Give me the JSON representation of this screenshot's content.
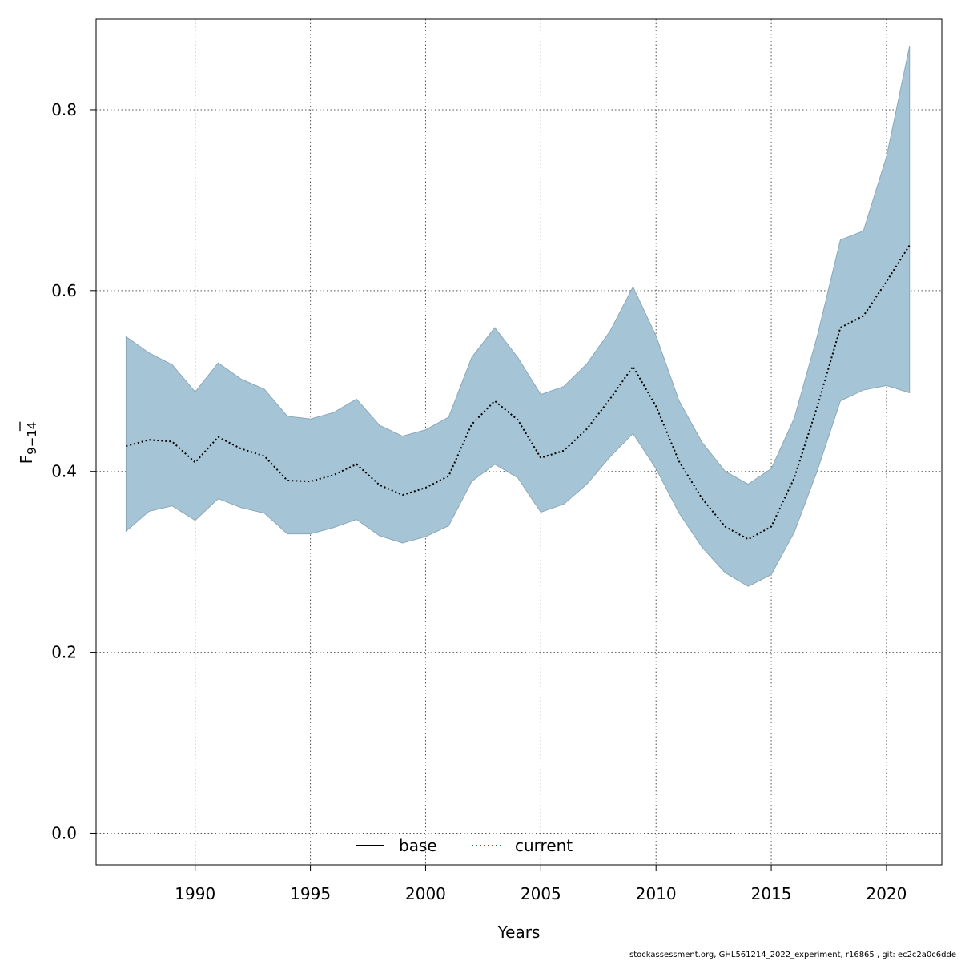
{
  "chart_data": {
    "type": "area",
    "xlabel": "Years",
    "ylabel": {
      "main": "F",
      "subscript": "9−14"
    },
    "xlim": [
      1985.7,
      2022.4
    ],
    "ylim": [
      -0.035,
      0.9
    ],
    "x_ticks": [
      1990,
      1995,
      2000,
      2005,
      2010,
      2015,
      2020
    ],
    "y_ticks": [
      0.0,
      0.2,
      0.4,
      0.6,
      0.8
    ],
    "x_tick_labels": [
      "1990",
      "1995",
      "2000",
      "2005",
      "2010",
      "2015",
      "2020"
    ],
    "y_tick_labels": [
      "0.0",
      "0.2",
      "0.4",
      "0.6",
      "0.8"
    ],
    "grid": true,
    "legend_position": "bottom-center",
    "colors": {
      "band_fill": "#a5c5d7",
      "band_edge": "#8aa8b8",
      "current_line": "#000000",
      "base_line": "#000000",
      "current_legend": "#2a6a9a",
      "grid": "#555555"
    },
    "x": [
      1987,
      1988,
      1989,
      1990,
      1991,
      1992,
      1993,
      1994,
      1995,
      1996,
      1997,
      1998,
      1999,
      2000,
      2001,
      2002,
      2003,
      2004,
      2005,
      2006,
      2007,
      2008,
      2009,
      2010,
      2011,
      2012,
      2013,
      2014,
      2015,
      2016,
      2017,
      2018,
      2019,
      2020,
      2021
    ],
    "series": [
      {
        "name": "current",
        "style": "dotted",
        "values": [
          0.428,
          0.435,
          0.433,
          0.41,
          0.438,
          0.425,
          0.417,
          0.39,
          0.389,
          0.396,
          0.408,
          0.385,
          0.374,
          0.382,
          0.395,
          0.452,
          0.478,
          0.457,
          0.415,
          0.423,
          0.447,
          0.48,
          0.516,
          0.472,
          0.411,
          0.37,
          0.339,
          0.325,
          0.339,
          0.393,
          0.472,
          0.559,
          0.572,
          0.61,
          0.65
        ],
        "lower": [
          0.334,
          0.356,
          0.362,
          0.346,
          0.37,
          0.36,
          0.354,
          0.331,
          0.331,
          0.338,
          0.347,
          0.329,
          0.321,
          0.328,
          0.34,
          0.389,
          0.408,
          0.393,
          0.355,
          0.364,
          0.386,
          0.416,
          0.442,
          0.403,
          0.354,
          0.316,
          0.288,
          0.273,
          0.286,
          0.333,
          0.401,
          0.478,
          0.49,
          0.495,
          0.487
        ],
        "upper": [
          0.549,
          0.531,
          0.518,
          0.488,
          0.52,
          0.502,
          0.491,
          0.461,
          0.458,
          0.465,
          0.48,
          0.451,
          0.439,
          0.446,
          0.46,
          0.526,
          0.559,
          0.526,
          0.485,
          0.494,
          0.519,
          0.555,
          0.604,
          0.55,
          0.478,
          0.432,
          0.4,
          0.386,
          0.403,
          0.459,
          0.55,
          0.656,
          0.666,
          0.748,
          0.87
        ]
      }
    ],
    "legend": [
      {
        "label": "base",
        "style": "solid"
      },
      {
        "label": "current",
        "style": "dotted"
      }
    ]
  },
  "footer": {
    "text": "stockassessment.org, GHL561214_2022_experiment, r16865 , git: ec2c2a0c6dde"
  }
}
